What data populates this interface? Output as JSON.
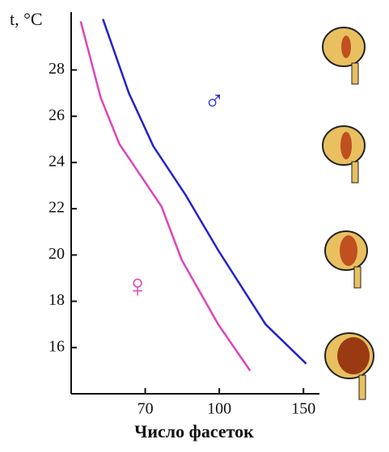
{
  "chart_data": {
    "type": "line",
    "y_label": "t, °C",
    "x_label": "Число фасеток",
    "x_scale": "log",
    "xlim": [
      49,
      162
    ],
    "ylim": [
      14,
      30.5
    ],
    "xticks": [
      70,
      100,
      150
    ],
    "yticks": [
      16,
      18,
      20,
      22,
      24,
      26,
      28
    ],
    "series": [
      {
        "name": "♂",
        "color": "#2222cc",
        "x": [
          57.1,
          64.7,
          72.8,
          85,
          99.5,
          125,
          152
        ],
        "values": [
          30.2,
          27.0,
          24.7,
          22.6,
          20.2,
          17.0,
          15.3
        ]
      },
      {
        "name": "♀",
        "color": "#dd44bb",
        "x": [
          51.3,
          56.5,
          61.8,
          75.7,
          83.4,
          99.5,
          116
        ],
        "values": [
          30.1,
          26.8,
          24.8,
          22.1,
          19.8,
          17.0,
          15.0
        ]
      }
    ]
  }
}
